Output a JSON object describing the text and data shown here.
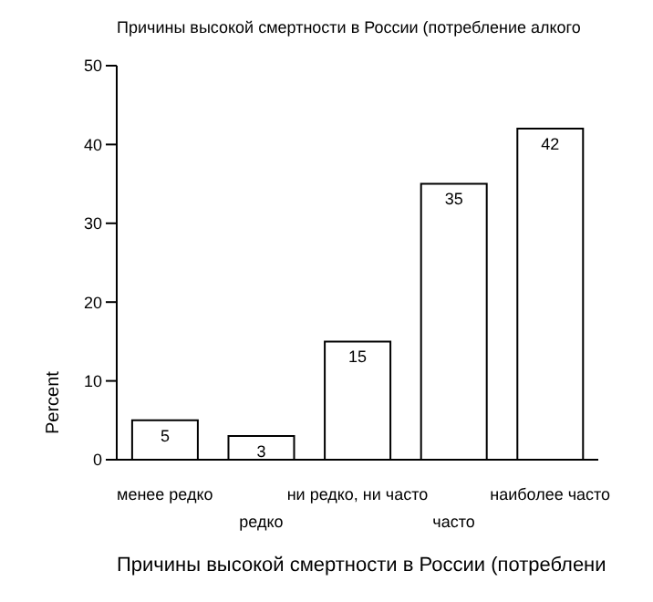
{
  "chart_data": {
    "type": "bar",
    "title": "Причины высокой смертности в России (потребление алкого",
    "xlabel": "Причины высокой смертности в России (потреблени",
    "ylabel": "Percent",
    "categories": [
      "менее редко",
      "редко",
      "ни редко, ни часто",
      "часто",
      "наиболее часто"
    ],
    "values": [
      5,
      3,
      15,
      35,
      42
    ],
    "color": "#ffffff",
    "data_labels": true,
    "ylim": [
      0,
      50
    ],
    "yticks": [
      0,
      10,
      20,
      30,
      40,
      50
    ],
    "grid": false
  }
}
